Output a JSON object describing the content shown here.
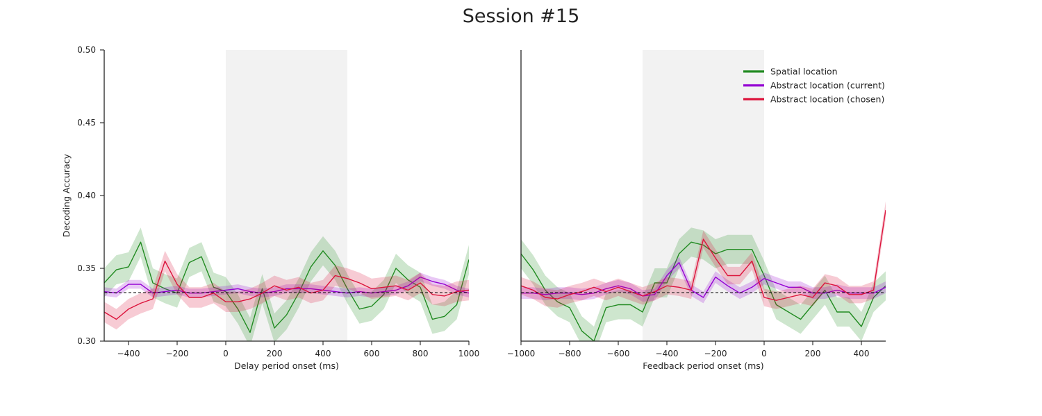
{
  "figure": {
    "title": "Session #15"
  },
  "chart_data": [
    {
      "type": "line",
      "xlabel": "Delay period onset (ms)",
      "ylabel": "Decoding Accuracy",
      "xlim": [
        -500,
        1000
      ],
      "ylim": [
        0.3,
        0.5
      ],
      "xticks": [
        -400,
        -200,
        0,
        200,
        400,
        600,
        800,
        1000
      ],
      "xtick_labels": [
        "−400",
        "−200",
        "0",
        "200",
        "400",
        "600",
        "800",
        "1000"
      ],
      "yticks": [
        0.3,
        0.35,
        0.4,
        0.45,
        0.5
      ],
      "ytick_labels": [
        "0.30",
        "0.35",
        "0.40",
        "0.45",
        "0.50"
      ],
      "shaded_region": [
        0,
        500
      ],
      "chance_level": 0.3333,
      "x": [
        -500,
        -450,
        -400,
        -350,
        -300,
        -250,
        -200,
        -150,
        -100,
        -50,
        0,
        50,
        100,
        150,
        200,
        250,
        300,
        350,
        400,
        450,
        500,
        550,
        600,
        650,
        700,
        750,
        800,
        850,
        900,
        950,
        1000
      ],
      "series": [
        {
          "name": "Spatial location",
          "color": "#228B22",
          "values": [
            0.34,
            0.349,
            0.351,
            0.368,
            0.34,
            0.336,
            0.333,
            0.354,
            0.358,
            0.337,
            0.334,
            0.322,
            0.306,
            0.336,
            0.309,
            0.318,
            0.333,
            0.351,
            0.362,
            0.352,
            0.336,
            0.322,
            0.324,
            0.332,
            0.35,
            0.342,
            0.337,
            0.315,
            0.317,
            0.325,
            0.356
          ],
          "ci": 0.01
        },
        {
          "name": "Abstract location (current)",
          "color": "#9400D3",
          "values": [
            0.334,
            0.333,
            0.339,
            0.339,
            0.333,
            0.334,
            0.335,
            0.333,
            0.333,
            0.334,
            0.335,
            0.336,
            0.334,
            0.333,
            0.334,
            0.336,
            0.336,
            0.336,
            0.335,
            0.334,
            0.333,
            0.334,
            0.333,
            0.334,
            0.335,
            0.338,
            0.344,
            0.341,
            0.339,
            0.335,
            0.333
          ],
          "ci": 0.003
        },
        {
          "name": "Abstract location (chosen)",
          "color": "#DC143C",
          "values": [
            0.32,
            0.315,
            0.322,
            0.326,
            0.329,
            0.355,
            0.339,
            0.33,
            0.33,
            0.333,
            0.327,
            0.327,
            0.329,
            0.333,
            0.338,
            0.335,
            0.337,
            0.333,
            0.335,
            0.345,
            0.343,
            0.34,
            0.336,
            0.337,
            0.338,
            0.335,
            0.34,
            0.332,
            0.331,
            0.334,
            0.335
          ],
          "ci": 0.007
        }
      ]
    },
    {
      "type": "line",
      "xlabel": "Feedback period onset (ms)",
      "ylabel": "",
      "xlim": [
        -1000,
        500
      ],
      "ylim": [
        0.3,
        0.5
      ],
      "xticks": [
        -1000,
        -800,
        -600,
        -400,
        -200,
        0,
        200,
        400
      ],
      "xtick_labels": [
        "−1000",
        "−800",
        "−600",
        "−400",
        "−200",
        "0",
        "200",
        "400"
      ],
      "shaded_region": [
        -500,
        0
      ],
      "chance_level": 0.3333,
      "legend": {
        "position": "top-right",
        "entries": [
          "Spatial location",
          "Abstract location (current)",
          "Abstract location (chosen)"
        ]
      },
      "x": [
        -1000,
        -950,
        -900,
        -850,
        -800,
        -750,
        -700,
        -650,
        -600,
        -550,
        -500,
        -450,
        -400,
        -350,
        -300,
        -250,
        -200,
        -150,
        -100,
        -50,
        0,
        50,
        100,
        150,
        200,
        250,
        300,
        350,
        400,
        450,
        500
      ],
      "series": [
        {
          "name": "Spatial location",
          "color": "#228B22",
          "values": [
            0.36,
            0.349,
            0.335,
            0.327,
            0.323,
            0.307,
            0.3,
            0.323,
            0.325,
            0.325,
            0.32,
            0.34,
            0.34,
            0.36,
            0.368,
            0.366,
            0.36,
            0.363,
            0.363,
            0.363,
            0.345,
            0.325,
            0.32,
            0.315,
            0.325,
            0.335,
            0.32,
            0.32,
            0.31,
            0.33,
            0.338
          ],
          "ci": 0.01
        },
        {
          "name": "Abstract location (current)",
          "color": "#9400D3",
          "values": [
            0.333,
            0.333,
            0.332,
            0.333,
            0.333,
            0.332,
            0.333,
            0.336,
            0.338,
            0.336,
            0.331,
            0.332,
            0.345,
            0.354,
            0.335,
            0.33,
            0.344,
            0.338,
            0.333,
            0.337,
            0.343,
            0.34,
            0.337,
            0.337,
            0.333,
            0.333,
            0.335,
            0.333,
            0.333,
            0.333,
            0.337
          ],
          "ci": 0.004
        },
        {
          "name": "Abstract location (chosen)",
          "color": "#DC143C",
          "values": [
            0.338,
            0.335,
            0.33,
            0.329,
            0.332,
            0.334,
            0.337,
            0.334,
            0.337,
            0.334,
            0.331,
            0.334,
            0.338,
            0.337,
            0.335,
            0.37,
            0.357,
            0.345,
            0.345,
            0.355,
            0.33,
            0.328,
            0.33,
            0.332,
            0.33,
            0.34,
            0.338,
            0.332,
            0.332,
            0.335,
            0.39
          ],
          "ci": 0.006
        }
      ]
    }
  ]
}
